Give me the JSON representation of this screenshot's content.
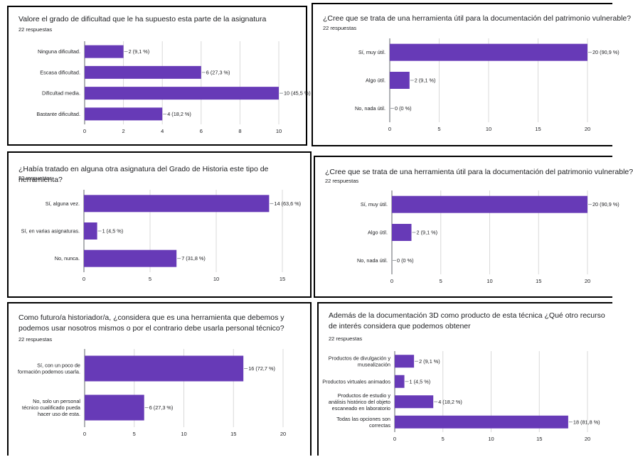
{
  "colors": {
    "bar": "#673ab7",
    "grid": "#d9d9d9",
    "axis": "#5f6368",
    "border": "#000000"
  },
  "chart_data": [
    {
      "type": "bar",
      "orientation": "horizontal",
      "title": "Valore el grado de dificultad que le ha supuesto esta parte de la asignatura",
      "responses": "22 respuestas",
      "categories": [
        "Ninguna dificultad.",
        "Escasa dificultad.",
        "Dificultad media.",
        "Bastante dificultad."
      ],
      "values": [
        2,
        6,
        10,
        4
      ],
      "value_labels": [
        "2 (9,1 %)",
        "6 (27,3 %)",
        "10 (45,5 %)",
        "4 (18,2 %)"
      ],
      "xlim": [
        0,
        10
      ],
      "xticks": [
        0,
        2,
        4,
        6,
        8,
        10
      ],
      "grid": true
    },
    {
      "type": "bar",
      "orientation": "horizontal",
      "title": "¿Cree que se trata de una herramienta útil para la documentación del patrimonio vulnerable?",
      "responses": "22 respuestas",
      "categories": [
        "Sí, muy útil.",
        "Algo útil.",
        "No, nada útil."
      ],
      "values": [
        20,
        2,
        0
      ],
      "value_labels": [
        "20 (90,9 %)",
        "2 (9,1 %)",
        "0 (0 %)"
      ],
      "xlim": [
        0,
        20
      ],
      "xticks": [
        0,
        5,
        10,
        15,
        20
      ],
      "grid": true
    },
    {
      "type": "bar",
      "orientation": "horizontal",
      "title": "¿Había tratado en alguna otra asignatura del Grado de Historia este tipo de herramienta?",
      "responses": "22 respuestas",
      "categories": [
        "Sí, alguna vez.",
        "Sí, en varias asignaturas.",
        "No, nunca."
      ],
      "values": [
        14,
        1,
        7
      ],
      "value_labels": [
        "14 (63,6 %)",
        "1 (4,5 %)",
        "7 (31,8 %)"
      ],
      "xlim": [
        0,
        15
      ],
      "xticks": [
        0,
        5,
        10,
        15
      ],
      "grid": true
    },
    {
      "type": "bar",
      "orientation": "horizontal",
      "title": "¿Cree que se trata de una herramienta útil para la documentación del patrimonio vulnerable?",
      "responses": "22 respuestas",
      "categories": [
        "Sí, muy útil.",
        "Algo útil.",
        "No, nada útil."
      ],
      "values": [
        20,
        2,
        0
      ],
      "value_labels": [
        "20 (90,9 %)",
        "2 (9,1 %)",
        "0 (0 %)"
      ],
      "xlim": [
        0,
        20
      ],
      "xticks": [
        0,
        5,
        10,
        15,
        20
      ],
      "grid": true
    },
    {
      "type": "bar",
      "orientation": "horizontal",
      "title": "Como futuro/a historiador/a, ¿considera que es una herramienta que debemos y podemos usar nosotros mismos o por el contrario debe usarla personal técnico?",
      "responses": "22 respuestas",
      "categories": [
        "Sí, con un poco de formación podemos usarla.",
        "No, solo un personal técnico cualificado pueda hacer uso de esta."
      ],
      "values": [
        16,
        6
      ],
      "value_labels": [
        "16 (72,7 %)",
        "6 (27,3 %)"
      ],
      "xlim": [
        0,
        20
      ],
      "xticks": [
        0,
        5,
        10,
        15,
        20
      ],
      "grid": true
    },
    {
      "type": "bar",
      "orientation": "horizontal",
      "title": "Además de la documentación 3D como producto de esta técnica ¿Qué otro recurso de interés considera que podemos obtener",
      "responses": "22 respuestas",
      "categories": [
        "Productos de divulgación y musealización",
        "Productos virtuales animados",
        "Productos de estudio y análisis histórico del objeto escaneado en laboratorio",
        "Todas las opciones son correctas"
      ],
      "values": [
        2,
        1,
        4,
        18
      ],
      "value_labels": [
        "2 (9,1 %)",
        "1 (4,5 %)",
        "4 (18,2 %)",
        "18 (81,8 %)"
      ],
      "xlim": [
        0,
        20
      ],
      "xticks": [
        0,
        5,
        10,
        15,
        20
      ],
      "grid": true
    }
  ]
}
